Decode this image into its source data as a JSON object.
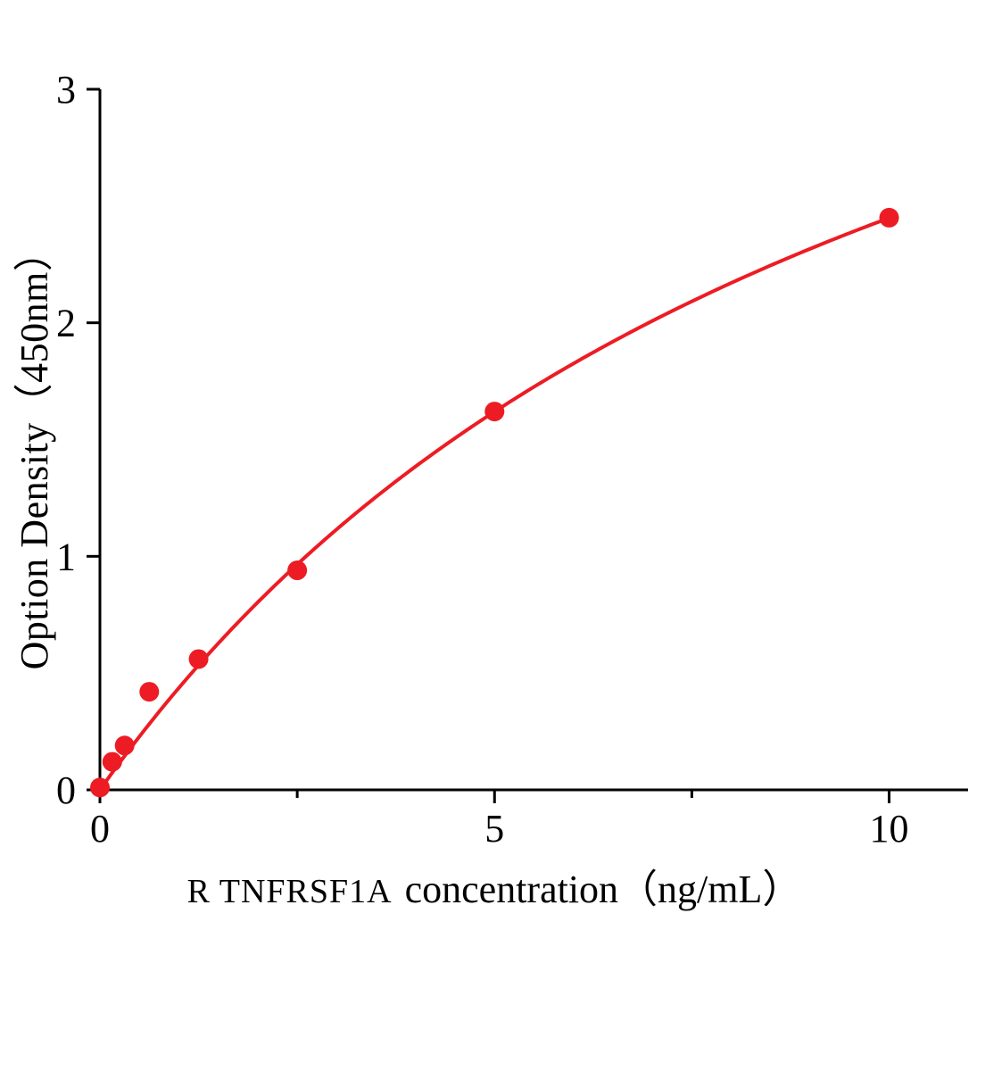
{
  "figure": {
    "background": "#ffffff"
  },
  "chart_data": {
    "type": "scatter",
    "title": "",
    "xlabel_prefix": "R TNFRSF1A",
    "xlabel_rest": "concentration（ng/mL）",
    "ylabel": "Option Density（450nm）",
    "series": [
      {
        "name": "standard-curve-points",
        "x": [
          0,
          0.156,
          0.313,
          0.625,
          1.25,
          2.5,
          5,
          10
        ],
        "y": [
          0.01,
          0.12,
          0.19,
          0.42,
          0.56,
          0.94,
          1.62,
          2.45
        ]
      }
    ],
    "fit_curve": {
      "model": "hyperbolic y = vmax*x/(k+x)",
      "vmax": 5.02,
      "k": 10.5,
      "x_range": [
        0,
        10
      ]
    },
    "xlim": [
      0,
      11
    ],
    "ylim": [
      0,
      3
    ],
    "xticks": [
      0,
      5,
      10
    ],
    "xtick_labels": [
      "0",
      "5",
      "10"
    ],
    "x_minor_ticks": [
      2.5,
      7.5
    ],
    "yticks": [
      0,
      1,
      2,
      3
    ],
    "ytick_labels": [
      "0",
      "1",
      "2",
      "3"
    ],
    "grid": false,
    "legend": false,
    "colors": {
      "line": "#ed1c24",
      "marker": "#ed1c24",
      "axis": "#000000",
      "text": "#000000"
    },
    "marker_radius": 11
  }
}
